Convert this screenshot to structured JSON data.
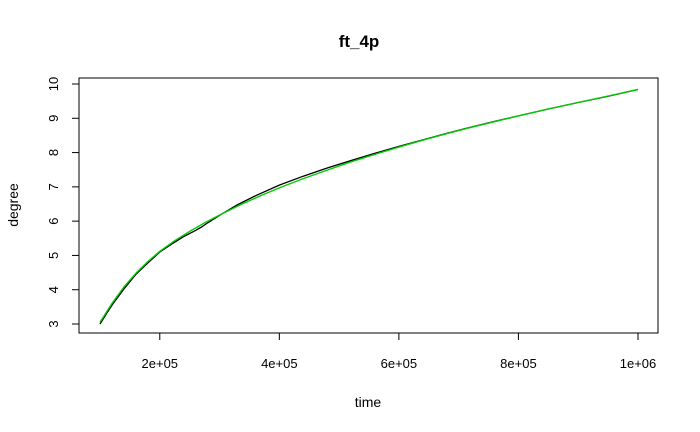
{
  "chart_data": {
    "type": "line",
    "title": "ft_4p",
    "xlabel": "time",
    "ylabel": "degree",
    "xlim": [
      100000,
      1000000
    ],
    "ylim": [
      3,
      10
    ],
    "x_ticks": [
      {
        "value": 200000,
        "label": "2e+05"
      },
      {
        "value": 400000,
        "label": "4e+05"
      },
      {
        "value": 600000,
        "label": "6e+05"
      },
      {
        "value": 800000,
        "label": "8e+05"
      },
      {
        "value": 1000000,
        "label": "1e+06"
      }
    ],
    "y_ticks": [
      {
        "value": 3,
        "label": "3"
      },
      {
        "value": 4,
        "label": "4"
      },
      {
        "value": 5,
        "label": "5"
      },
      {
        "value": 6,
        "label": "6"
      },
      {
        "value": 7,
        "label": "7"
      },
      {
        "value": 8,
        "label": "8"
      },
      {
        "value": 9,
        "label": "9"
      },
      {
        "value": 10,
        "label": "10"
      }
    ],
    "grid": false,
    "series": [
      {
        "color": "#000000",
        "x": [
          100000,
          110000,
          120000,
          140000,
          160000,
          180000,
          200000,
          220000,
          240000,
          260000,
          270000,
          280000,
          300000,
          330000,
          360000,
          400000,
          440000,
          480000,
          520000,
          560000,
          600000,
          640000,
          680000,
          720000,
          760000,
          800000,
          850000,
          900000,
          950000,
          1000000
        ],
        "y": [
          3.0,
          3.28,
          3.55,
          4.02,
          4.45,
          4.78,
          5.1,
          5.33,
          5.55,
          5.73,
          5.83,
          5.95,
          6.17,
          6.48,
          6.74,
          7.05,
          7.31,
          7.55,
          7.77,
          7.98,
          8.18,
          8.37,
          8.56,
          8.74,
          8.91,
          9.07,
          9.27,
          9.46,
          9.64,
          9.84
        ]
      },
      {
        "color": "#00cc00",
        "x": [
          100000,
          120000,
          140000,
          160000,
          180000,
          200000,
          225000,
          250000,
          275000,
          300000,
          335000,
          370000,
          400000,
          440000,
          480000,
          520000,
          560000,
          600000,
          640000,
          680000,
          720000,
          760000,
          800000,
          850000,
          900000,
          950000,
          1000000
        ],
        "y": [
          3.05,
          3.6,
          4.08,
          4.48,
          4.82,
          5.12,
          5.43,
          5.7,
          5.95,
          6.18,
          6.48,
          6.75,
          6.97,
          7.24,
          7.49,
          7.73,
          7.95,
          8.16,
          8.36,
          8.55,
          8.73,
          8.9,
          9.07,
          9.27,
          9.46,
          9.65,
          9.84
        ]
      }
    ]
  }
}
